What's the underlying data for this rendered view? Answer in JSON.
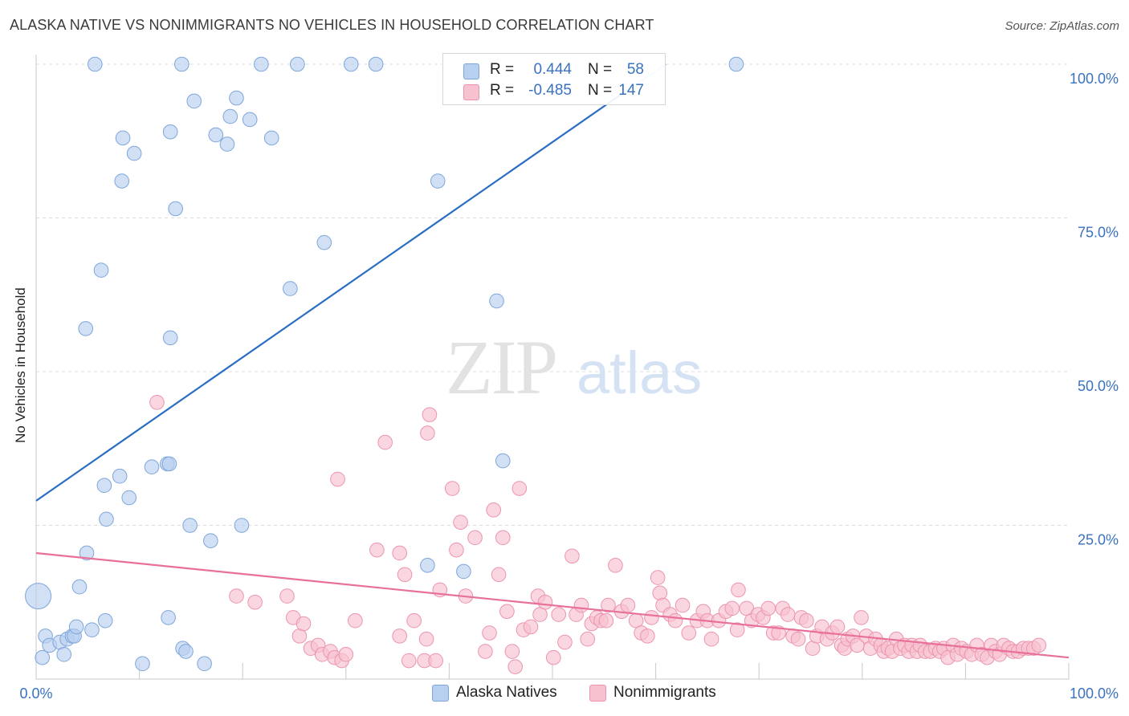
{
  "title": "ALASKA NATIVE VS NONIMMIGRANTS NO VEHICLES IN HOUSEHOLD CORRELATION CHART",
  "source": "Source: ZipAtlas.com",
  "watermark": {
    "zip": "ZIP",
    "atlas": "atlas"
  },
  "colors": {
    "blue_fill": "#b8d0ef",
    "blue_stroke": "#7ea6da",
    "blue_line": "#2a6dc4",
    "pink_fill": "#f7c1d0",
    "pink_stroke": "#ec94ad",
    "pink_line": "#e8709a",
    "tick_text": "#3a72c0"
  },
  "legend": {
    "r_label": "R =",
    "n_label": "N =",
    "rows": [
      {
        "series": "blue",
        "r": "0.444",
        "n": "58"
      },
      {
        "series": "pink",
        "r": "-0.485",
        "n": "147"
      }
    ]
  },
  "bottom_legend": [
    {
      "series": "blue",
      "label": "Alaska Natives"
    },
    {
      "series": "pink",
      "label": "Nonimmigrants"
    }
  ],
  "chart_data": {
    "type": "scatter",
    "title": "ALASKA NATIVE VS NONIMMIGRANTS NO VEHICLES IN HOUSEHOLD CORRELATION CHART",
    "xlabel": "",
    "ylabel": "No Vehicles in Household",
    "xlim": [
      0,
      100
    ],
    "ylim": [
      0,
      100
    ],
    "x_tick_labels": [
      "0.0%",
      "100.0%"
    ],
    "y_tick_labels": [
      "25.0%",
      "50.0%",
      "75.0%",
      "100.0%"
    ],
    "y_ticks": [
      25,
      50,
      75,
      100
    ],
    "grid": "horizontal dashed",
    "series": [
      {
        "name": "Alaska Natives",
        "color": "blue",
        "r": 0.444,
        "n": 58,
        "trend": {
          "x": [
            0,
            61
          ],
          "y": [
            29,
            100
          ]
        },
        "trend_ext": {
          "x": [
            57,
            61
          ],
          "y": [
            95.5,
            100
          ]
        },
        "points": [
          [
            0.2,
            13.5,
            1
          ],
          [
            0.6,
            3.5,
            0.55
          ],
          [
            0.9,
            7,
            0.55
          ],
          [
            1.3,
            5.5,
            0.55
          ],
          [
            2.3,
            6,
            0.55
          ],
          [
            2.7,
            4,
            0.55
          ],
          [
            3,
            6.5,
            0.55
          ],
          [
            3.5,
            7,
            0.55
          ],
          [
            3.7,
            7,
            0.55
          ],
          [
            3.9,
            8.5,
            0.55
          ],
          [
            4.2,
            15,
            0.55
          ],
          [
            4.9,
            20.5,
            0.55
          ],
          [
            5.4,
            8,
            0.55
          ],
          [
            6.7,
            9.5,
            0.55
          ],
          [
            4.8,
            57,
            0.55
          ],
          [
            6.3,
            66.5,
            0.55
          ],
          [
            6.6,
            31.5,
            0.55
          ],
          [
            6.8,
            26,
            0.55
          ],
          [
            8.1,
            33,
            0.55
          ],
          [
            9,
            29.5,
            0.55
          ],
          [
            10.3,
            2.5,
            0.55
          ],
          [
            11.2,
            34.5,
            0.55
          ],
          [
            5.7,
            100,
            0.55
          ],
          [
            8.4,
            88,
            0.55
          ],
          [
            8.3,
            81,
            0.55
          ],
          [
            9.5,
            85.5,
            0.55
          ],
          [
            12.7,
            35,
            0.55
          ],
          [
            12.9,
            35,
            0.55
          ],
          [
            12.8,
            10,
            0.55
          ],
          [
            13,
            89,
            0.55
          ],
          [
            13,
            55.5,
            0.55
          ],
          [
            13.5,
            76.5,
            0.55
          ],
          [
            14.1,
            100,
            0.55
          ],
          [
            14.2,
            5,
            0.55
          ],
          [
            14.5,
            4.5,
            0.55
          ],
          [
            14.9,
            25,
            0.55
          ],
          [
            15.3,
            94,
            0.55
          ],
          [
            16.3,
            2.5,
            0.55
          ],
          [
            16.9,
            22.5,
            0.55
          ],
          [
            17.4,
            88.5,
            0.55
          ],
          [
            18.5,
            87,
            0.55
          ],
          [
            18.8,
            91.5,
            0.55
          ],
          [
            19.4,
            94.5,
            0.55
          ],
          [
            19.9,
            25,
            0.55
          ],
          [
            20.7,
            91,
            0.55
          ],
          [
            21.8,
            100,
            0.55
          ],
          [
            22.8,
            88,
            0.55
          ],
          [
            24.6,
            63.5,
            0.55
          ],
          [
            25.3,
            100,
            0.55
          ],
          [
            27.9,
            71,
            0.55
          ],
          [
            30.5,
            100,
            0.55
          ],
          [
            32.9,
            100,
            0.55
          ],
          [
            37.9,
            18.5,
            0.55
          ],
          [
            38.9,
            81,
            0.55
          ],
          [
            41.4,
            17.5,
            0.55
          ],
          [
            44.6,
            61.5,
            0.55
          ],
          [
            45.2,
            35.5,
            0.55
          ],
          [
            67.8,
            100,
            0.55
          ]
        ]
      },
      {
        "name": "Nonimmigrants",
        "color": "pink",
        "r": -0.485,
        "n": 147,
        "trend": {
          "x": [
            0,
            100
          ],
          "y": [
            20.5,
            3.5
          ]
        },
        "points": [
          [
            11.7,
            45,
            0.55
          ],
          [
            19.4,
            13.5,
            0.55
          ],
          [
            21.2,
            12.5,
            0.55
          ],
          [
            24.3,
            13.5,
            0.55
          ],
          [
            24.9,
            10,
            0.55
          ],
          [
            25.5,
            7,
            0.55
          ],
          [
            25.9,
            9,
            0.55
          ],
          [
            26.6,
            5,
            0.55
          ],
          [
            27.3,
            5.5,
            0.55
          ],
          [
            27.7,
            4,
            0.55
          ],
          [
            28.5,
            4.5,
            0.55
          ],
          [
            28.9,
            3.5,
            0.55
          ],
          [
            29.6,
            3,
            0.55
          ],
          [
            30,
            4,
            0.55
          ],
          [
            30.9,
            9.5,
            0.55
          ],
          [
            29.2,
            32.5,
            0.55
          ],
          [
            33,
            21,
            0.55
          ],
          [
            33.8,
            38.5,
            0.55
          ],
          [
            35.2,
            20.5,
            0.55
          ],
          [
            35.7,
            17,
            0.55
          ],
          [
            35.2,
            7,
            0.55
          ],
          [
            36.1,
            3,
            0.55
          ],
          [
            36.6,
            9.5,
            0.55
          ],
          [
            37.8,
            6.5,
            0.55
          ],
          [
            37.6,
            3,
            0.55
          ],
          [
            37.9,
            40,
            0.55
          ],
          [
            38.1,
            43,
            0.55
          ],
          [
            38.7,
            3,
            0.55
          ],
          [
            39.1,
            14.5,
            0.55
          ],
          [
            40.3,
            31,
            0.55
          ],
          [
            40.7,
            21,
            0.55
          ],
          [
            41.1,
            25.5,
            0.55
          ],
          [
            41.6,
            13.5,
            0.55
          ],
          [
            42.5,
            23,
            0.55
          ],
          [
            43.5,
            4.5,
            0.55
          ],
          [
            43.9,
            7.5,
            0.55
          ],
          [
            44.3,
            27.5,
            0.55
          ],
          [
            44.8,
            17,
            0.55
          ],
          [
            45.2,
            23,
            0.55
          ],
          [
            45.6,
            11,
            0.55
          ],
          [
            46.1,
            4.5,
            0.55
          ],
          [
            46.4,
            2,
            0.55
          ],
          [
            46.8,
            31,
            0.55
          ],
          [
            47.2,
            8,
            0.55
          ],
          [
            47.9,
            8.5,
            0.55
          ],
          [
            48.6,
            13.5,
            0.55
          ],
          [
            48.8,
            10.5,
            0.55
          ],
          [
            49.3,
            12.5,
            0.55
          ],
          [
            50.1,
            3.5,
            0.55
          ],
          [
            50.6,
            10.5,
            0.55
          ],
          [
            51.2,
            6,
            0.55
          ],
          [
            51.9,
            20,
            0.55
          ],
          [
            52.3,
            10.5,
            0.55
          ],
          [
            52.8,
            12,
            0.55
          ],
          [
            53.4,
            6.5,
            0.55
          ],
          [
            53.8,
            9,
            0.55
          ],
          [
            54.3,
            10,
            0.55
          ],
          [
            54.7,
            9.5,
            0.55
          ],
          [
            55.2,
            9.5,
            0.55
          ],
          [
            55.4,
            12,
            0.55
          ],
          [
            56.1,
            18.5,
            0.55
          ],
          [
            56.7,
            11,
            0.55
          ],
          [
            57.3,
            12,
            0.55
          ],
          [
            58.1,
            9.5,
            0.55
          ],
          [
            58.6,
            7.5,
            0.55
          ],
          [
            59.2,
            7,
            0.55
          ],
          [
            59.6,
            10,
            0.55
          ],
          [
            60.2,
            16.5,
            0.55
          ],
          [
            60.4,
            14,
            0.55
          ],
          [
            60.7,
            12,
            0.55
          ],
          [
            61.4,
            10.5,
            0.55
          ],
          [
            61.9,
            9.5,
            0.55
          ],
          [
            62.6,
            12,
            0.55
          ],
          [
            63.2,
            7.5,
            0.55
          ],
          [
            64,
            9.5,
            0.55
          ],
          [
            64.6,
            11,
            0.55
          ],
          [
            65,
            9.5,
            0.55
          ],
          [
            65.4,
            6.5,
            0.55
          ],
          [
            66.1,
            9.5,
            0.55
          ],
          [
            66.8,
            11,
            0.55
          ],
          [
            67.4,
            11.5,
            0.55
          ],
          [
            67.9,
            8,
            0.55
          ],
          [
            68,
            14.5,
            0.55
          ],
          [
            68.8,
            11.5,
            0.55
          ],
          [
            69.3,
            9.5,
            0.55
          ],
          [
            69.9,
            10.5,
            0.55
          ],
          [
            70.4,
            10,
            0.55
          ],
          [
            70.9,
            11.5,
            0.55
          ],
          [
            71.4,
            7.5,
            0.55
          ],
          [
            71.9,
            7.5,
            0.55
          ],
          [
            72.3,
            11.5,
            0.55
          ],
          [
            72.8,
            10.5,
            0.55
          ],
          [
            73.3,
            7,
            0.55
          ],
          [
            73.8,
            6.5,
            0.55
          ],
          [
            74.1,
            10,
            0.55
          ],
          [
            74.6,
            9.5,
            0.55
          ],
          [
            75.2,
            5,
            0.55
          ],
          [
            75.6,
            7,
            0.55
          ],
          [
            76.1,
            8.5,
            0.55
          ],
          [
            76.6,
            6.5,
            0.55
          ],
          [
            77.1,
            7.5,
            0.55
          ],
          [
            77.6,
            8.5,
            0.55
          ],
          [
            78,
            5.5,
            0.55
          ],
          [
            78.3,
            5,
            0.55
          ],
          [
            78.6,
            6.5,
            0.55
          ],
          [
            79.1,
            7,
            0.55
          ],
          [
            79.5,
            5.5,
            0.55
          ],
          [
            79.9,
            10,
            0.55
          ],
          [
            80.4,
            7,
            0.55
          ],
          [
            80.8,
            5,
            0.55
          ],
          [
            81.3,
            6.5,
            0.55
          ],
          [
            81.8,
            5.5,
            0.55
          ],
          [
            82.1,
            4.5,
            0.55
          ],
          [
            82.5,
            5,
            0.55
          ],
          [
            82.9,
            4.5,
            0.55
          ],
          [
            83.3,
            6.5,
            0.55
          ],
          [
            83.7,
            5,
            0.55
          ],
          [
            84.1,
            5.5,
            0.55
          ],
          [
            84.5,
            4.5,
            0.55
          ],
          [
            84.8,
            5.5,
            0.55
          ],
          [
            85.3,
            4.5,
            0.55
          ],
          [
            85.6,
            5.5,
            0.55
          ],
          [
            86.1,
            4.5,
            0.55
          ],
          [
            86.6,
            4.5,
            0.55
          ],
          [
            87.1,
            5,
            0.55
          ],
          [
            87.5,
            4.5,
            0.55
          ],
          [
            87.9,
            5,
            0.55
          ],
          [
            88.3,
            3.5,
            0.55
          ],
          [
            88.8,
            5.5,
            0.55
          ],
          [
            89.2,
            4,
            0.55
          ],
          [
            89.6,
            5,
            0.55
          ],
          [
            90.1,
            4.5,
            0.55
          ],
          [
            90.6,
            4,
            0.55
          ],
          [
            91.1,
            5.5,
            0.55
          ],
          [
            91.6,
            4,
            0.55
          ],
          [
            92.1,
            3.5,
            0.55
          ],
          [
            92.5,
            5.5,
            0.55
          ],
          [
            92.9,
            4.5,
            0.55
          ],
          [
            93.3,
            4,
            0.55
          ],
          [
            93.7,
            5.5,
            0.55
          ],
          [
            94.2,
            5,
            0.55
          ],
          [
            94.6,
            4.5,
            0.55
          ],
          [
            95.1,
            4.5,
            0.55
          ],
          [
            95.6,
            5,
            0.55
          ],
          [
            96.1,
            5,
            0.55
          ],
          [
            96.6,
            5,
            0.55
          ],
          [
            97.1,
            5.5,
            0.55
          ]
        ]
      }
    ]
  }
}
